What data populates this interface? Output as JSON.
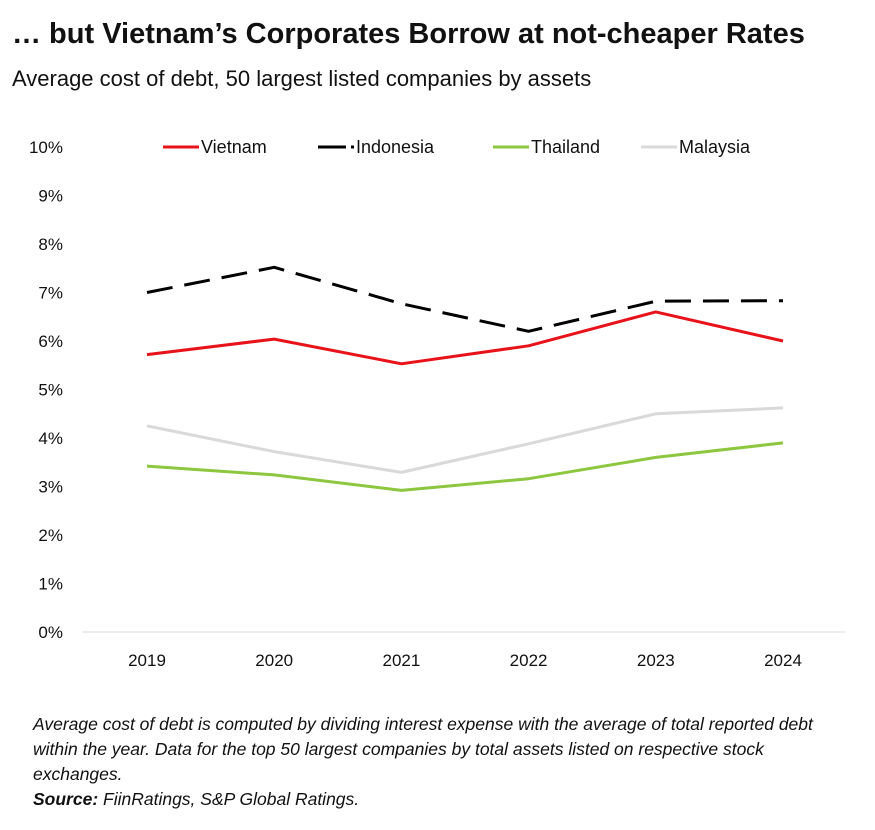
{
  "header": {
    "title": "… but Vietnam’s Corporates Borrow at not-cheaper Rates",
    "subtitle": "Average cost of debt, 50 largest listed companies by assets"
  },
  "chart_data": {
    "type": "line",
    "categories": [
      "2019",
      "2020",
      "2021",
      "2022",
      "2023",
      "2024"
    ],
    "ylim": [
      0,
      10
    ],
    "yticks": [
      "0%",
      "1%",
      "2%",
      "3%",
      "4%",
      "5%",
      "6%",
      "7%",
      "8%",
      "9%",
      "10%"
    ],
    "grid": false,
    "legend_placement": "top",
    "series": [
      {
        "name": "Vietnam",
        "color": "#e8131a",
        "dash": "solid",
        "values": [
          5.72,
          6.04,
          5.53,
          5.9,
          6.6,
          6.0
        ]
      },
      {
        "name": "Indonesia",
        "color": "#000000",
        "dash": "dashed",
        "values": [
          7.0,
          7.52,
          6.77,
          6.2,
          6.82,
          6.83
        ]
      },
      {
        "name": "Thailand",
        "color": "#8dc63f",
        "dash": "solid",
        "values": [
          3.42,
          3.24,
          2.92,
          3.16,
          3.6,
          3.9
        ]
      },
      {
        "name": "Malaysia",
        "color": "#d9d9d9",
        "dash": "solid",
        "values": [
          4.25,
          3.72,
          3.29,
          3.88,
          4.5,
          4.62
        ]
      }
    ]
  },
  "footnote": {
    "text": "Average cost of debt is computed by dividing interest expense with the average of total reported debt within the year. Data for the top 50 largest companies by total assets listed on respective stock exchanges.",
    "source_label": "Source:",
    "source_text": " FiinRatings,  S&P Global Ratings."
  }
}
